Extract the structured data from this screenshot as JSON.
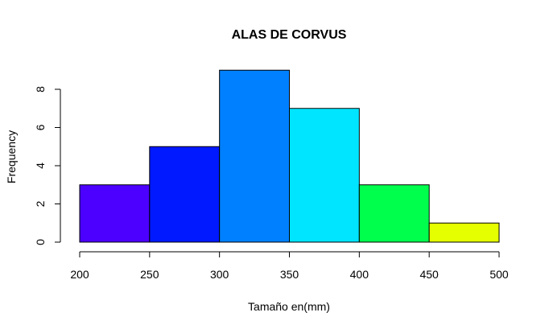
{
  "chart_data": {
    "type": "bar",
    "title": "ALAS DE CORVUS",
    "xlabel": "Tamaño en(mm)",
    "ylabel": "Frequency",
    "bins": [
      {
        "from": 200,
        "to": 250,
        "count": 3,
        "color": "#4C00FF"
      },
      {
        "from": 250,
        "to": 300,
        "count": 5,
        "color": "#0019FF"
      },
      {
        "from": 300,
        "to": 350,
        "count": 9,
        "color": "#0080FF"
      },
      {
        "from": 350,
        "to": 400,
        "count": 7,
        "color": "#00E5FF"
      },
      {
        "from": 400,
        "to": 450,
        "count": 3,
        "color": "#00FF4D"
      },
      {
        "from": 450,
        "to": 500,
        "count": 1,
        "color": "#E6FF00"
      }
    ],
    "xlim": [
      200,
      500
    ],
    "ylim": [
      0,
      9
    ],
    "xticks": [
      200,
      250,
      300,
      350,
      400,
      450,
      500
    ],
    "yticks": [
      0,
      2,
      4,
      6,
      8
    ],
    "grid": false
  }
}
